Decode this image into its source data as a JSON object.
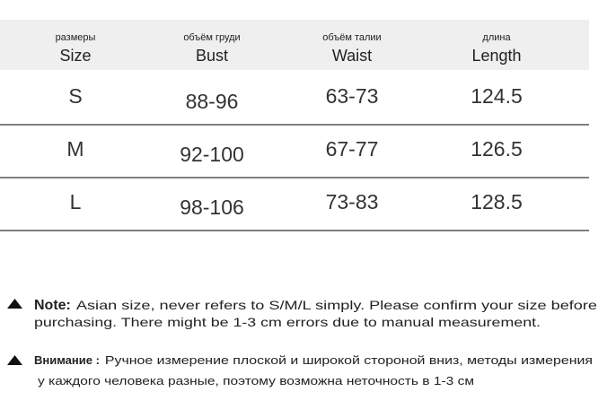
{
  "table": {
    "header": [
      {
        "ru": "размеры",
        "en": "Size"
      },
      {
        "ru": "объём груди",
        "en": "Bust"
      },
      {
        "ru": "объём талии",
        "en": "Waist"
      },
      {
        "ru": "длина",
        "en": "Length"
      }
    ],
    "rows": [
      [
        "S",
        "88-96",
        "63-73",
        "124.5"
      ],
      [
        "M",
        "92-100",
        "67-77",
        "126.5"
      ],
      [
        "L",
        "98-106",
        "73-83",
        "128.5"
      ]
    ]
  },
  "notes": [
    {
      "label": "Note:",
      "lines": [
        "Asian size, never refers to S/M/L simply. Please confirm your size before",
        "purchasing. There might be 1-3 cm errors due to manual measurement."
      ]
    },
    {
      "label": "Внимание :",
      "lines": [
        "Ручное измерение плоской и широкой стороной вниз, методы измерения",
        "у каждого человека разные, поэтому возможна неточность в 1-3 см"
      ]
    }
  ]
}
